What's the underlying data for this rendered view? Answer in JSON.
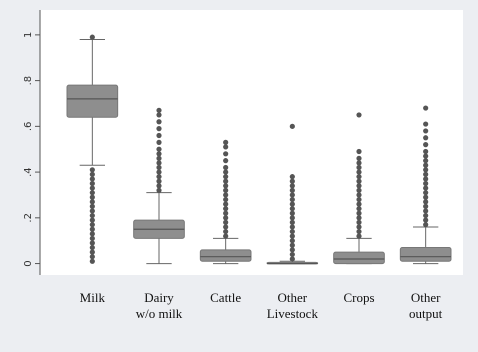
{
  "chart_data": {
    "type": "box",
    "categories": [
      "Milk",
      "Dairy\nw/o milk",
      "Cattle",
      "Other\nLivestock",
      "Crops",
      "Other\noutput"
    ],
    "boxes": [
      {
        "low": 0.43,
        "q1": 0.64,
        "median": 0.72,
        "q3": 0.78,
        "high": 0.98,
        "outliers": [
          0.01,
          0.03,
          0.05,
          0.07,
          0.09,
          0.11,
          0.13,
          0.15,
          0.17,
          0.19,
          0.21,
          0.23,
          0.25,
          0.27,
          0.29,
          0.31,
          0.33,
          0.35,
          0.37,
          0.39,
          0.41,
          0.99
        ]
      },
      {
        "low": 0,
        "q1": 0.11,
        "median": 0.15,
        "q3": 0.19,
        "high": 0.31,
        "outliers": [
          0.32,
          0.34,
          0.36,
          0.38,
          0.4,
          0.42,
          0.44,
          0.46,
          0.48,
          0.5,
          0.53,
          0.56,
          0.59,
          0.62,
          0.65,
          0.67
        ]
      },
      {
        "low": 0,
        "q1": 0.01,
        "median": 0.03,
        "q3": 0.06,
        "high": 0.11,
        "outliers": [
          0.12,
          0.14,
          0.16,
          0.18,
          0.2,
          0.22,
          0.24,
          0.26,
          0.28,
          0.3,
          0.32,
          0.34,
          0.36,
          0.38,
          0.4,
          0.42,
          0.45,
          0.48,
          0.51,
          0.53
        ]
      },
      {
        "low": 0,
        "q1": 0,
        "median": 0,
        "q3": 0.005,
        "high": 0.01,
        "outliers": [
          0.02,
          0.04,
          0.06,
          0.08,
          0.1,
          0.12,
          0.14,
          0.16,
          0.18,
          0.2,
          0.22,
          0.24,
          0.26,
          0.28,
          0.3,
          0.32,
          0.34,
          0.36,
          0.38,
          0.6
        ]
      },
      {
        "low": 0,
        "q1": 0,
        "median": 0.02,
        "q3": 0.05,
        "high": 0.11,
        "outliers": [
          0.12,
          0.14,
          0.16,
          0.18,
          0.2,
          0.22,
          0.24,
          0.26,
          0.28,
          0.3,
          0.32,
          0.34,
          0.36,
          0.38,
          0.4,
          0.42,
          0.44,
          0.46,
          0.49,
          0.65
        ]
      },
      {
        "low": 0,
        "q1": 0.01,
        "median": 0.03,
        "q3": 0.07,
        "high": 0.16,
        "outliers": [
          0.17,
          0.19,
          0.21,
          0.23,
          0.25,
          0.27,
          0.29,
          0.31,
          0.33,
          0.35,
          0.37,
          0.39,
          0.41,
          0.43,
          0.45,
          0.47,
          0.49,
          0.52,
          0.55,
          0.58,
          0.61,
          0.68
        ]
      }
    ],
    "color": "#8e8e8e",
    "ylim": [
      -0.05,
      1.1
    ],
    "yticks": [
      0,
      {
        "value": 0.2,
        "label": ".2"
      },
      {
        "value": 0.4,
        "label": ".4"
      },
      {
        "value": 0.6,
        "label": ".6"
      },
      {
        "value": 0.8,
        "label": ".8"
      },
      1
    ]
  }
}
